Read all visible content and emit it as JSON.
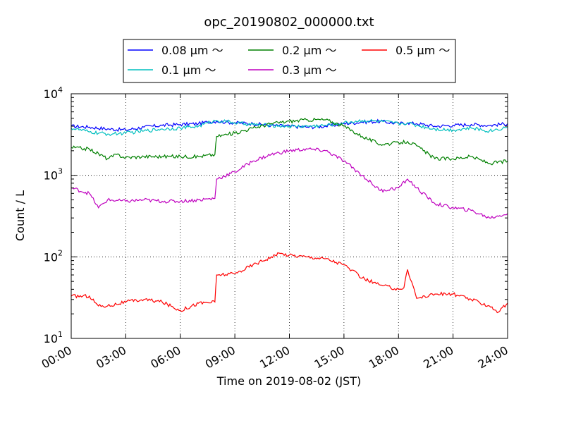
{
  "chart_data": {
    "type": "line",
    "title": "opc_20190802_000000.txt",
    "xlabel": "Time on 2019-08-02 (JST)",
    "ylabel": "Count / L",
    "yscale": "log",
    "xlim": [
      0,
      24
    ],
    "ylim": [
      10,
      10000
    ],
    "x_ticks": [
      "00:00",
      "03:00",
      "06:00",
      "09:00",
      "12:00",
      "15:00",
      "18:00",
      "21:00",
      "24:00"
    ],
    "y_ticks": [
      {
        "value": 10,
        "base": "10",
        "exp": "1"
      },
      {
        "value": 100,
        "base": "10",
        "exp": "2"
      },
      {
        "value": 1000,
        "base": "10",
        "exp": "3"
      },
      {
        "value": 10000,
        "base": "10",
        "exp": "4"
      }
    ],
    "grid": true,
    "legend_position": "top-center",
    "series": [
      {
        "name": "0.08 μm ～",
        "color": "#0000ff",
        "x": [
          0,
          1,
          2,
          3,
          4,
          5,
          6,
          7,
          7.5,
          8,
          8.5,
          9,
          10,
          11,
          12,
          13,
          14,
          15,
          16,
          17,
          18,
          18.5,
          19,
          20,
          21,
          22,
          23,
          24
        ],
        "y": [
          4000,
          3900,
          3700,
          3600,
          3900,
          4100,
          4200,
          4300,
          4500,
          4600,
          4500,
          4400,
          4300,
          4100,
          4000,
          3900,
          4000,
          4300,
          4500,
          4600,
          4300,
          4400,
          4300,
          4000,
          4100,
          4200,
          4100,
          4300
        ]
      },
      {
        "name": "0.1 μm ～",
        "color": "#00bfbf",
        "x": [
          0,
          1,
          2,
          3,
          4,
          5,
          6,
          7,
          7.5,
          8,
          8.5,
          9,
          10,
          11,
          12,
          13,
          14,
          15,
          16,
          17,
          18,
          18.5,
          19,
          20,
          21,
          22,
          23,
          24
        ],
        "y": [
          3800,
          3400,
          3200,
          3300,
          3500,
          3700,
          3800,
          4000,
          4400,
          4700,
          4600,
          4400,
          4200,
          4100,
          4000,
          4000,
          4100,
          4400,
          4700,
          4600,
          4300,
          4400,
          4100,
          3700,
          3600,
          3800,
          3500,
          3900
        ]
      },
      {
        "name": "0.2 μm ～",
        "color": "#008000",
        "x": [
          0,
          1,
          2,
          2.5,
          3,
          4,
          5,
          6,
          7,
          7.9,
          8,
          9,
          10,
          11,
          12,
          13,
          14,
          15,
          16,
          17,
          18,
          18.5,
          19,
          20,
          21,
          22,
          23,
          24
        ],
        "y": [
          2200,
          2100,
          1600,
          1800,
          1650,
          1700,
          1700,
          1700,
          1700,
          1800,
          3000,
          3300,
          3800,
          4300,
          4600,
          4800,
          4800,
          4000,
          3000,
          2400,
          2500,
          2600,
          2300,
          1600,
          1600,
          1700,
          1400,
          1500
        ]
      },
      {
        "name": "0.3 μm ～",
        "color": "#bf00bf",
        "x": [
          0,
          1,
          1.5,
          2,
          3,
          4,
          5,
          6,
          7,
          7.9,
          8,
          9,
          10,
          11,
          12,
          13,
          14,
          15,
          16,
          17,
          18,
          18.5,
          19,
          20,
          21,
          22,
          23,
          24
        ],
        "y": [
          700,
          600,
          400,
          500,
          480,
          500,
          480,
          480,
          500,
          520,
          900,
          1100,
          1500,
          1800,
          2000,
          2100,
          2000,
          1500,
          1000,
          650,
          700,
          900,
          700,
          450,
          400,
          370,
          300,
          340
        ]
      },
      {
        "name": "0.5 μm ～",
        "color": "#ff0000",
        "x": [
          0,
          1,
          1.5,
          2,
          3,
          4,
          5,
          6,
          7,
          7.9,
          8,
          9,
          10,
          11,
          11.5,
          12,
          13,
          14,
          15,
          16,
          17,
          18,
          18.3,
          18.5,
          18.8,
          19,
          20,
          21,
          22,
          23,
          23.5,
          24
        ],
        "y": [
          33,
          33,
          25,
          25,
          28,
          30,
          28,
          22,
          27,
          28,
          60,
          62,
          80,
          100,
          110,
          105,
          100,
          95,
          80,
          55,
          45,
          40,
          42,
          70,
          44,
          31,
          35,
          35,
          30,
          25,
          21,
          27
        ]
      }
    ]
  }
}
